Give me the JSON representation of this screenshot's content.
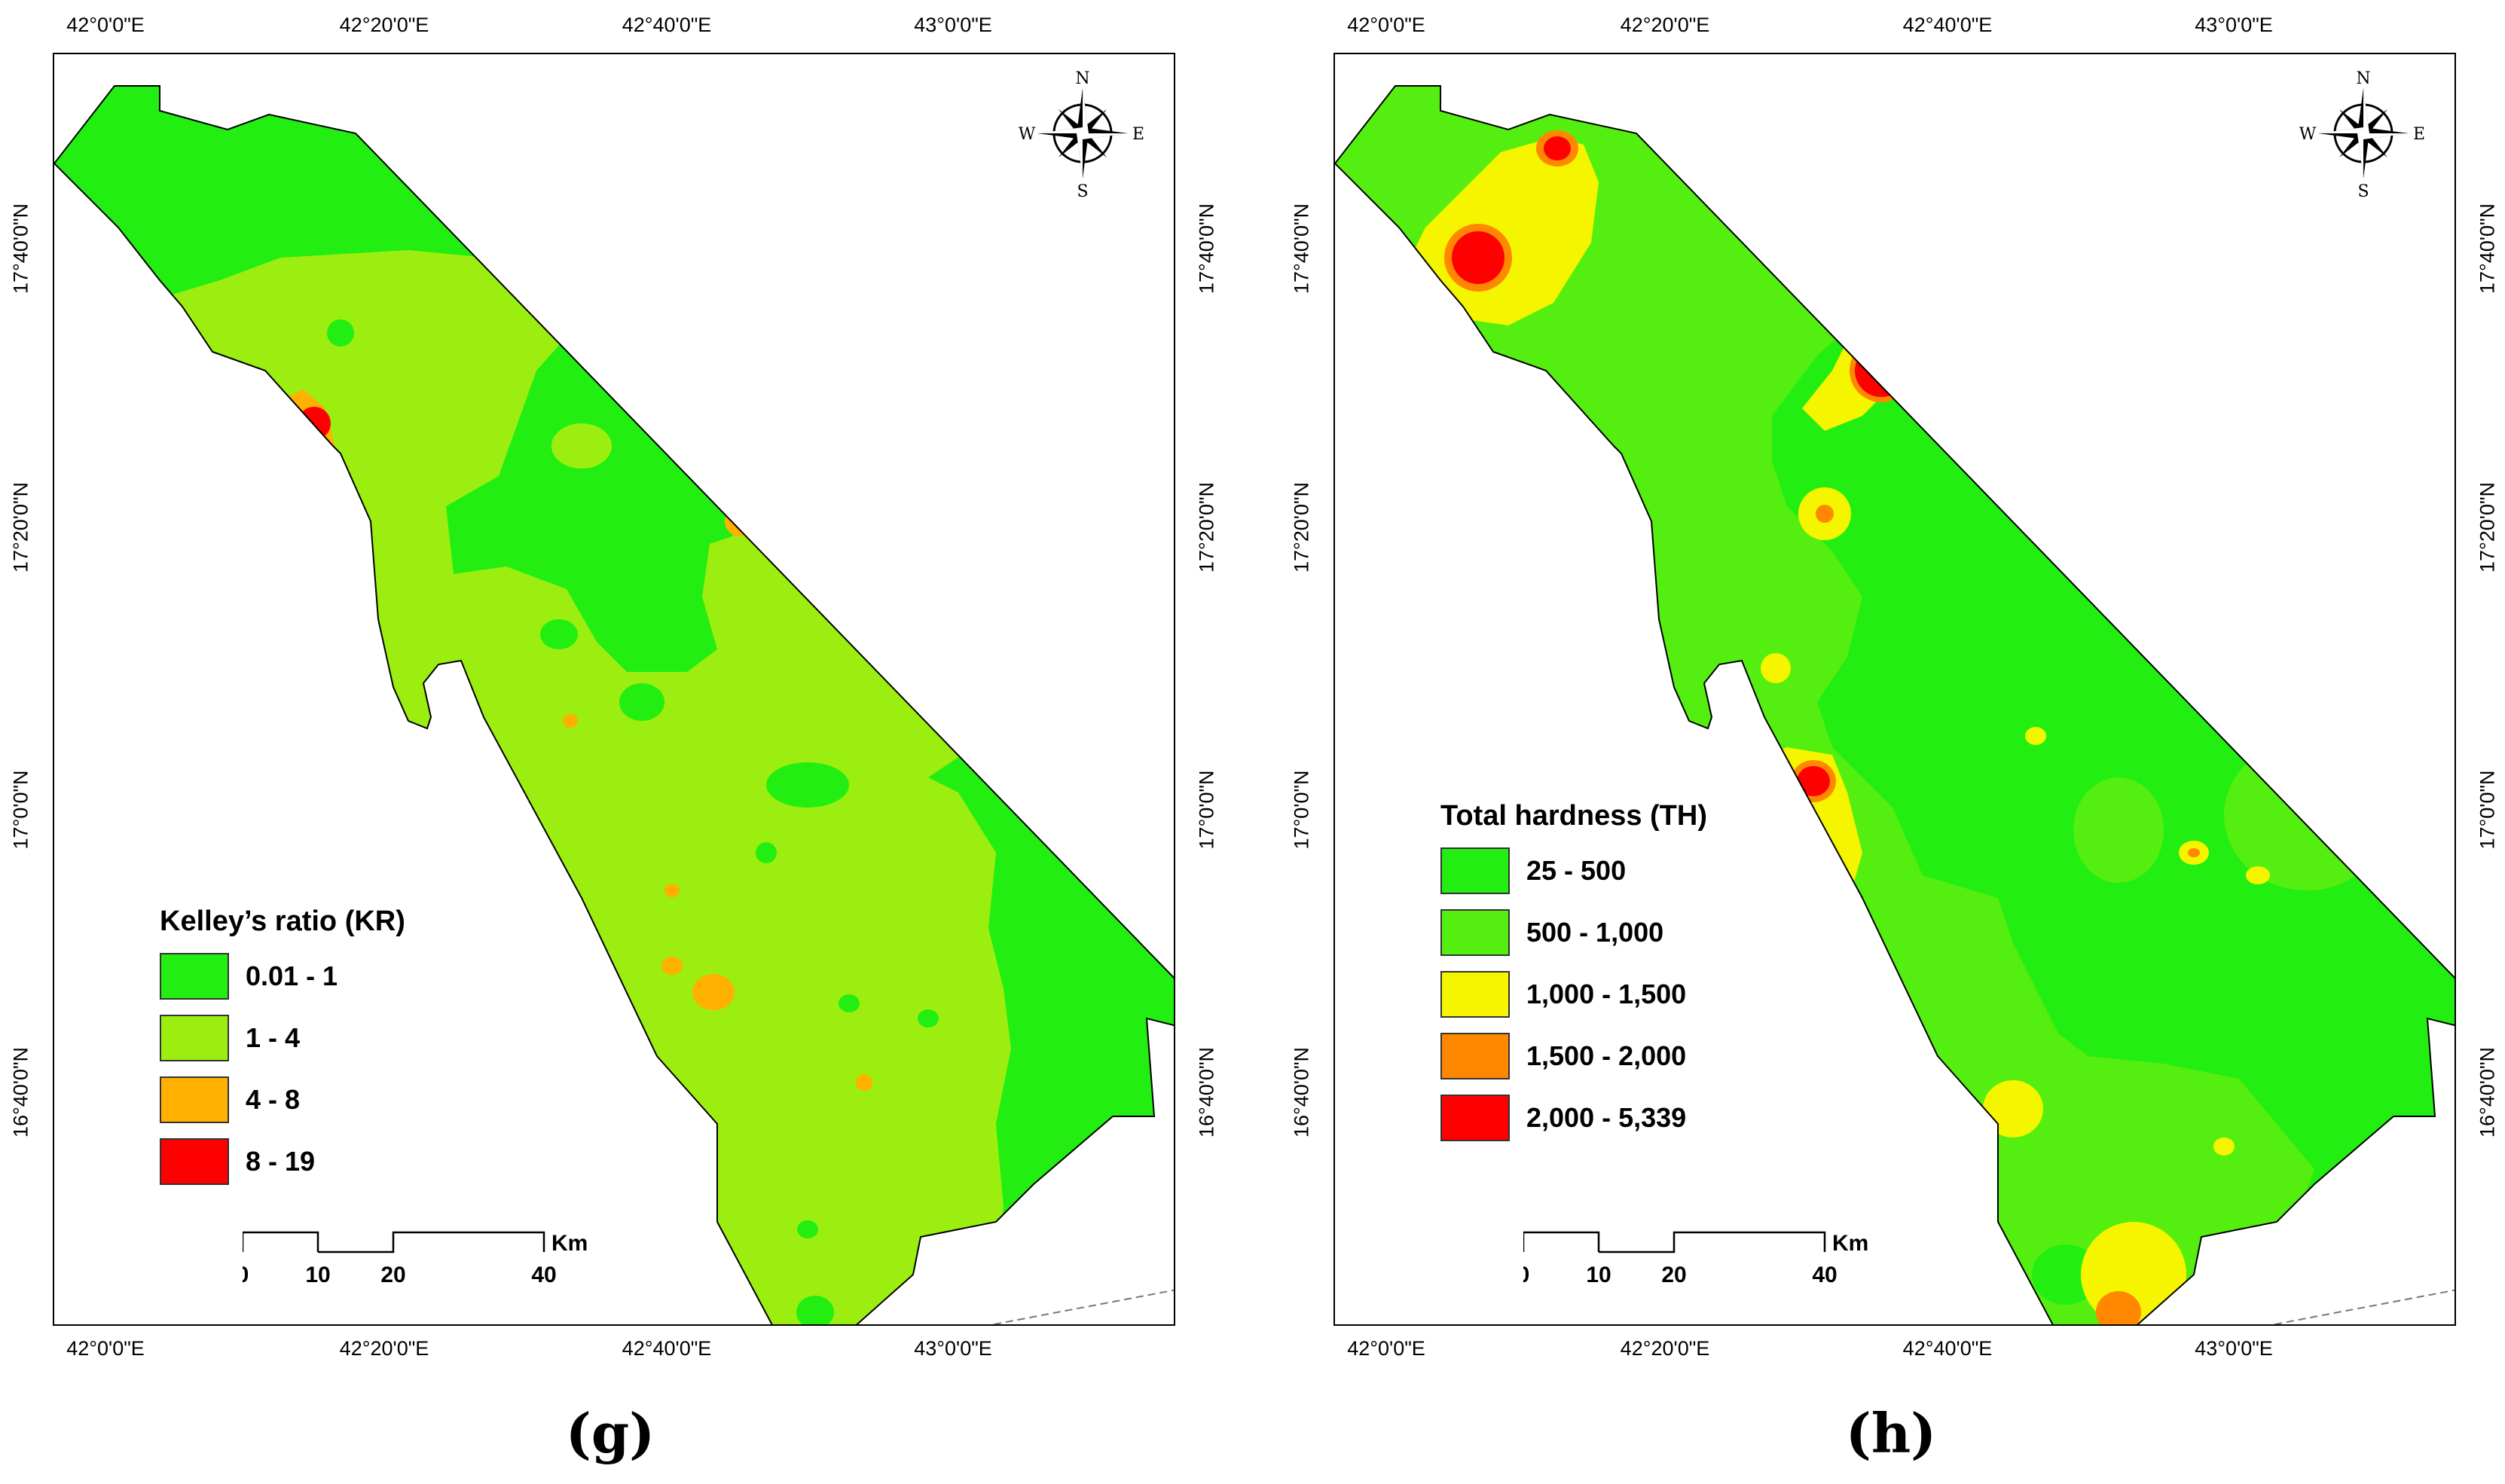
{
  "panels": [
    {
      "label": "(g)",
      "legend": {
        "title": "Kelley’s ratio (KR)",
        "classes": [
          {
            "label": "0.01 - 1",
            "color": "#22ee11"
          },
          {
            "label": "1 - 4",
            "color": "#9cee11"
          },
          {
            "label": "4 - 8",
            "color": "#ffb000"
          },
          {
            "label": "8 - 19",
            "color": "#ff0000"
          }
        ]
      }
    },
    {
      "label": "(h)",
      "legend": {
        "title": "Total hardness (TH)",
        "classes": [
          {
            "label": "25 - 500",
            "color": "#22ee11"
          },
          {
            "label": "500 - 1,000",
            "color": "#55ee11"
          },
          {
            "label": "1,000 - 1,500",
            "color": "#f5f500"
          },
          {
            "label": "1,500 - 2,000",
            "color": "#ff8800"
          },
          {
            "label": "2,000 - 5,339",
            "color": "#ff0000"
          }
        ]
      }
    }
  ],
  "axes": {
    "longitude_ticks": [
      "42°0'0\"E",
      "42°20'0\"E",
      "42°40'0\"E",
      "43°0'0\"E"
    ],
    "latitude_ticks": [
      "17°40'0\"N",
      "17°20'0\"N",
      "17°0'0\"N",
      "16°40'0\"N"
    ]
  },
  "scale_bar": {
    "ticks": [
      "0",
      "10",
      "20",
      "40"
    ],
    "unit": "Km"
  },
  "compass": {
    "n": "N",
    "s": "S",
    "e": "E",
    "w": "W"
  }
}
